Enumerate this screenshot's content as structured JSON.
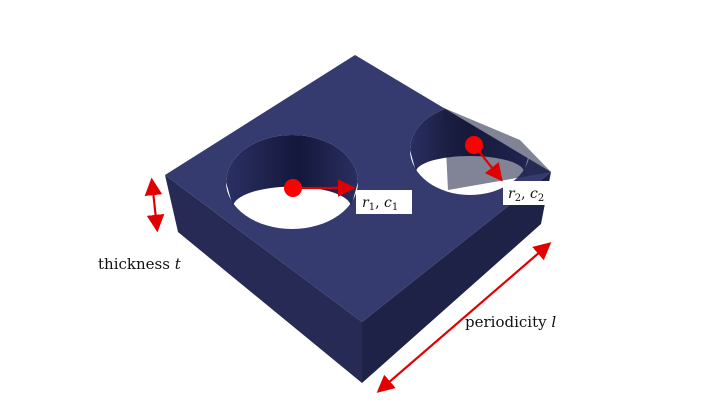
{
  "colors": {
    "block_top": "#353b6e",
    "block_left": "#262a55",
    "block_right": "#1f2247",
    "hole_wall_dark": "#171a3a",
    "hole_wall_light": "#3a4077",
    "arrow": "#e00000",
    "dot": "#ff0000",
    "label_bg": "#ffffff"
  },
  "labels": {
    "thickness_word": "thickness",
    "thickness_var": "t",
    "periodicity_word": "periodicity",
    "periodicity_var": "l",
    "hole1_r": "r",
    "hole1_r_sub": "1",
    "hole1_sep": ", ",
    "hole1_c": "c",
    "hole1_c_sub": "1",
    "hole2_r": "r",
    "hole2_r_sub": "2",
    "hole2_sep": ", ",
    "hole2_c": "c",
    "hole2_c_sub": "2"
  }
}
